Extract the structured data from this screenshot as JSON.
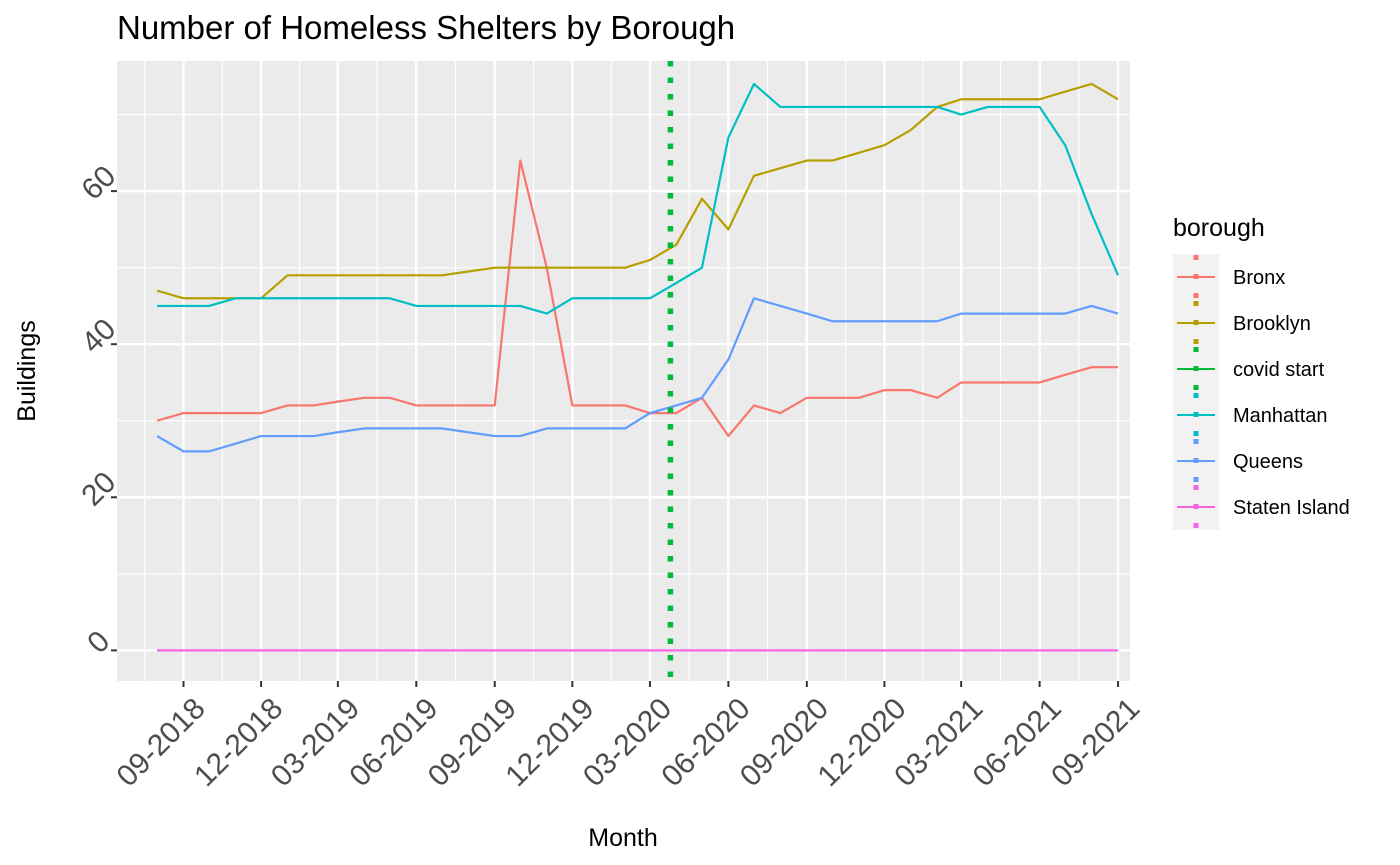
{
  "chart_data": {
    "type": "line",
    "title": "Number of Homeless Shelters by Borough",
    "xlabel": "Month",
    "ylabel": "Buildings",
    "x_tick_labels": [
      "09-2018",
      "12-2018",
      "03-2019",
      "06-2019",
      "09-2019",
      "12-2019",
      "03-2020",
      "06-2020",
      "09-2020",
      "12-2020",
      "03-2021",
      "06-2021",
      "09-2021"
    ],
    "y_ticks": [
      0,
      20,
      40,
      60
    ],
    "ylim": [
      -4,
      77
    ],
    "xlim": [
      "2018-06-15",
      "2021-09-15"
    ],
    "grid": true,
    "legend": {
      "title": "borough",
      "position": "right"
    },
    "x": [
      "2018-08",
      "2018-09",
      "2018-10",
      "2018-11",
      "2018-12",
      "2019-01",
      "2019-02",
      "2019-03",
      "2019-04",
      "2019-05",
      "2019-06",
      "2019-07",
      "2019-08",
      "2019-09",
      "2019-10",
      "2019-11",
      "2019-12",
      "2020-01",
      "2020-02",
      "2020-03",
      "2020-04",
      "2020-05",
      "2020-06",
      "2020-07",
      "2020-08",
      "2020-09",
      "2020-10",
      "2020-11",
      "2020-12",
      "2021-01",
      "2021-02",
      "2021-03",
      "2021-04",
      "2021-05",
      "2021-06",
      "2021-07",
      "2021-08",
      "2021-09"
    ],
    "series": [
      {
        "name": "Bronx",
        "color": "#F8766D",
        "values": [
          30,
          31,
          31,
          31,
          31,
          32,
          32,
          32.5,
          33,
          33,
          32,
          32,
          32,
          32,
          64,
          50,
          32,
          32,
          32,
          31,
          31,
          33,
          28,
          32,
          31,
          33,
          33,
          33,
          34,
          34,
          33,
          35,
          35,
          35,
          35,
          36,
          37,
          37
        ]
      },
      {
        "name": "Brooklyn",
        "color": "#B79F00",
        "values": [
          47,
          46,
          46,
          46,
          46,
          49,
          49,
          49,
          49,
          49,
          49,
          49,
          49.5,
          50,
          50,
          50,
          50,
          50,
          50,
          51,
          53,
          59,
          55,
          62,
          63,
          64,
          64,
          65,
          66,
          68,
          71,
          72,
          72,
          72,
          72,
          73,
          74,
          72
        ]
      },
      {
        "name": "Manhattan",
        "color": "#00BFC4",
        "values": [
          45,
          45,
          45,
          46,
          46,
          46,
          46,
          46,
          46,
          46,
          45,
          45,
          45,
          45,
          45,
          44,
          46,
          46,
          46,
          46,
          48,
          50,
          67,
          74,
          71,
          71,
          71,
          71,
          71,
          71,
          71,
          70,
          71,
          71,
          71,
          66,
          57,
          49
        ]
      },
      {
        "name": "Queens",
        "color": "#619CFF",
        "values": [
          28,
          26,
          26,
          27,
          28,
          28,
          28,
          28.5,
          29,
          29,
          29,
          29,
          28.5,
          28,
          28,
          29,
          29,
          29,
          29,
          31,
          32,
          33,
          38,
          46,
          45,
          44,
          43,
          43,
          43,
          43,
          43,
          44,
          44,
          44,
          44,
          44,
          45,
          44
        ]
      },
      {
        "name": "Staten Island",
        "color": "#F564E3",
        "values": [
          0,
          0,
          0,
          0,
          0,
          0,
          0,
          0,
          0,
          0,
          0,
          0,
          0,
          0,
          0,
          0,
          0,
          0,
          0,
          0,
          0,
          0,
          0,
          0,
          0,
          0,
          0,
          0,
          0,
          0,
          0,
          0,
          0,
          0,
          0,
          0,
          0,
          0
        ]
      }
    ],
    "annotations": [
      {
        "name": "covid start",
        "type": "vline",
        "x": "2020-03-25",
        "color": "#00BA38",
        "style": "dotted"
      }
    ],
    "legend_entries": [
      {
        "name": "Bronx",
        "color": "#F8766D"
      },
      {
        "name": "Brooklyn",
        "color": "#B79F00"
      },
      {
        "name": "covid start",
        "color": "#00BA38"
      },
      {
        "name": "Manhattan",
        "color": "#00BFC4"
      },
      {
        "name": "Queens",
        "color": "#619CFF"
      },
      {
        "name": "Staten Island",
        "color": "#F564E3"
      }
    ]
  }
}
